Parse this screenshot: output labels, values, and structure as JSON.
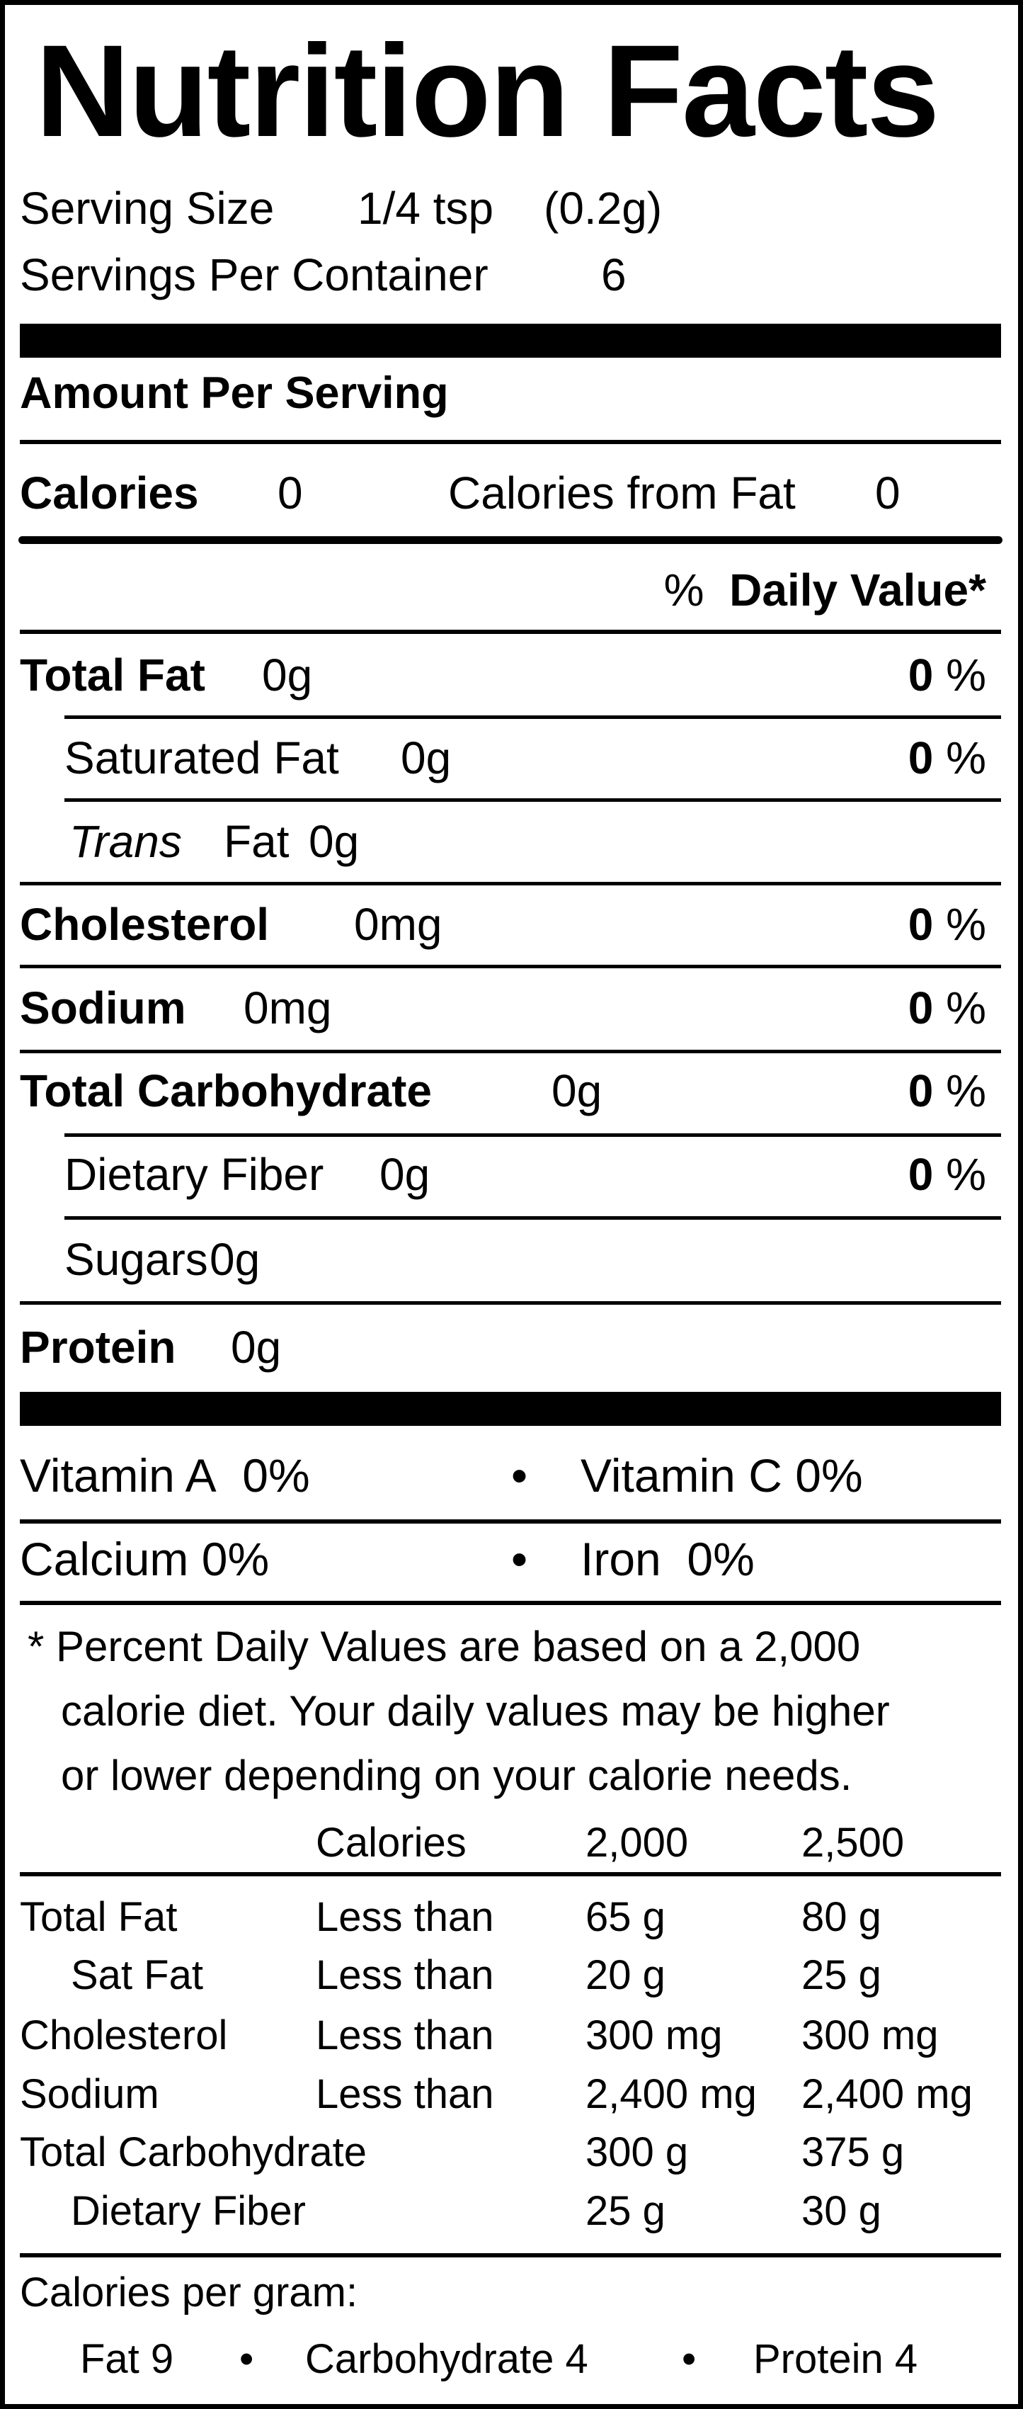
{
  "title": "Nutrition Facts",
  "serving": {
    "size_label": "Serving Size",
    "size_value": "1/4 tsp",
    "size_grams": "(0.2g)",
    "per_container_label": "Servings Per Container",
    "per_container_value": "6"
  },
  "amount_per_serving": "Amount Per Serving",
  "calories": {
    "label": "Calories",
    "value": "0",
    "from_fat_label": "Calories from Fat",
    "from_fat_value": "0"
  },
  "daily_value_header": {
    "percent": "%",
    "label": "Daily Value*"
  },
  "nutrients": [
    {
      "name": "Total Fat",
      "amount": "0g",
      "dv": "0",
      "unit": "%"
    },
    {
      "name": "Saturated Fat",
      "amount": "0g",
      "dv": "0",
      "unit": "%"
    },
    {
      "name": "Trans",
      "suffix": "Fat",
      "amount": "0g"
    },
    {
      "name": "Cholesterol",
      "amount": "0mg",
      "dv": "0",
      "unit": "%"
    },
    {
      "name": "Sodium",
      "amount": "0mg",
      "dv": "0",
      "unit": "%"
    },
    {
      "name": "Total Carbohydrate",
      "amount": "0g",
      "dv": "0",
      "unit": "%"
    },
    {
      "name": "Dietary Fiber",
      "amount": "0g",
      "dv": "0",
      "unit": "%"
    },
    {
      "name": "Sugars",
      "amount": "0g"
    },
    {
      "name": "Protein",
      "amount": "0g"
    }
  ],
  "vitamins": [
    {
      "name": "Vitamin A",
      "value": "0%"
    },
    {
      "name": "Vitamin C",
      "value": "0%"
    },
    {
      "name": "Calcium",
      "value": "0%"
    },
    {
      "name": "Iron",
      "value": "0%"
    }
  ],
  "bullet": "•",
  "footnote": [
    "* Percent Daily Values are based on a 2,000",
    "calorie diet. Your daily values may be higher",
    "or lower depending on your calorie needs."
  ],
  "reference_table": {
    "header": [
      "Calories",
      "2,000",
      "2,500"
    ],
    "rows": [
      [
        "Total Fat",
        "Less than",
        "65 g",
        "80 g"
      ],
      [
        "Sat Fat",
        "Less than",
        "20 g",
        "25 g"
      ],
      [
        "Cholesterol",
        "Less than",
        "300 mg",
        "300 mg"
      ],
      [
        "Sodium",
        "Less than",
        "2,400 mg",
        "2,400 mg"
      ],
      [
        "Total Carbohydrate",
        "",
        "300 g",
        "375 g"
      ],
      [
        "Dietary Fiber",
        "",
        "25 g",
        "30 g"
      ]
    ]
  },
  "calories_per_gram": {
    "label": "Calories per gram:",
    "items": [
      "Fat 9",
      "Carbohydrate 4",
      "Protein 4"
    ]
  }
}
